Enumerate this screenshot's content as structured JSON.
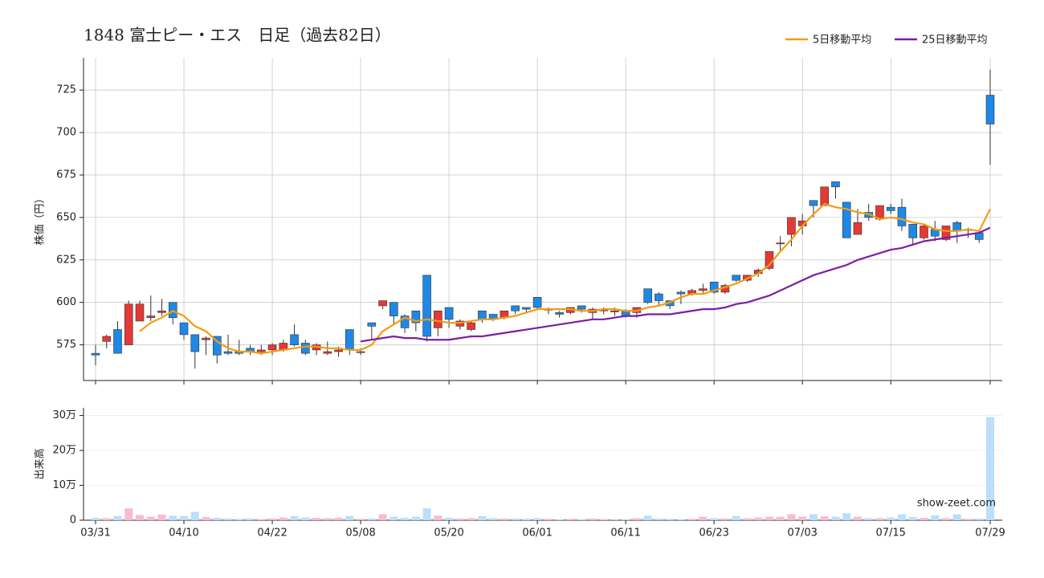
{
  "chart_data": [
    {
      "type": "candlestick",
      "title": "1848 富士ピー・エス　日足（過去82日）",
      "ylabel": "株価（円）",
      "categories": [
        "03/31",
        null,
        null,
        null,
        null,
        null,
        null,
        null,
        "04/10",
        null,
        null,
        null,
        null,
        null,
        null,
        null,
        "04/22",
        null,
        null,
        null,
        null,
        null,
        null,
        null,
        "05/08",
        null,
        null,
        null,
        null,
        null,
        null,
        null,
        "05/20",
        null,
        null,
        null,
        null,
        null,
        null,
        null,
        "06/01",
        null,
        null,
        null,
        null,
        null,
        null,
        null,
        "06/11",
        null,
        null,
        null,
        null,
        null,
        null,
        null,
        "06/23",
        null,
        null,
        null,
        null,
        null,
        null,
        null,
        "07/03",
        null,
        null,
        null,
        null,
        null,
        null,
        null,
        "07/15",
        null,
        null,
        null,
        null,
        null,
        null,
        null,
        null,
        "07/29"
      ],
      "open": [
        570,
        577,
        584,
        575,
        589,
        591,
        594,
        600,
        588,
        581,
        578,
        580,
        571,
        571,
        573,
        570,
        572,
        572,
        581,
        576,
        572,
        570,
        571,
        584,
        571,
        588,
        598,
        600,
        592,
        595,
        616,
        585,
        597,
        586,
        584,
        595,
        593,
        591,
        598,
        597,
        603,
        596,
        594,
        594,
        598,
        594,
        595,
        595,
        595,
        594,
        608,
        605,
        601,
        606,
        605,
        607,
        612,
        606,
        616,
        613,
        617,
        620,
        635,
        640,
        645,
        660,
        657,
        671,
        659,
        640,
        653,
        649,
        656,
        656,
        646,
        638,
        643,
        637,
        647,
        643,
        641,
        722
      ],
      "high": [
        575,
        581,
        589,
        601,
        601,
        604,
        602,
        600,
        588,
        581,
        580,
        580,
        581,
        578,
        575,
        575,
        576,
        578,
        587,
        578,
        576,
        577,
        574,
        584,
        573,
        588,
        601,
        600,
        593,
        595,
        616,
        595,
        597,
        590,
        589,
        595,
        593,
        595,
        598,
        597,
        603,
        597,
        595,
        597,
        598,
        597,
        597,
        597,
        596,
        597,
        608,
        606,
        601,
        607,
        608,
        611,
        612,
        611,
        616,
        616,
        620,
        630,
        639,
        650,
        652,
        660,
        668,
        671,
        659,
        655,
        658,
        657,
        658,
        661,
        646,
        646,
        648,
        645,
        648,
        644,
        642,
        737
      ],
      "low": [
        563,
        573,
        570,
        575,
        589,
        589,
        592,
        587,
        578,
        561,
        569,
        564,
        569,
        569,
        569,
        569,
        569,
        571,
        574,
        569,
        569,
        569,
        568,
        569,
        569,
        578,
        596,
        587,
        582,
        583,
        577,
        580,
        585,
        584,
        583,
        588,
        589,
        590,
        593,
        594,
        596,
        593,
        591,
        593,
        594,
        590,
        593,
        592,
        591,
        591,
        599,
        598,
        596,
        599,
        604,
        605,
        605,
        605,
        612,
        612,
        615,
        619,
        630,
        633,
        640,
        650,
        657,
        661,
        638,
        640,
        648,
        648,
        652,
        642,
        634,
        637,
        636,
        636,
        635,
        638,
        635,
        681
      ],
      "close": [
        569,
        580,
        570,
        599,
        599,
        592,
        595,
        591,
        581,
        571,
        579,
        569,
        570,
        570,
        571,
        572,
        575,
        576,
        575,
        570,
        575,
        571,
        572,
        572,
        571,
        586,
        601,
        592,
        585,
        588,
        580,
        595,
        590,
        589,
        588,
        590,
        590,
        595,
        595,
        596,
        597,
        596,
        593,
        597,
        596,
        596,
        596,
        595,
        592,
        597,
        600,
        601,
        598,
        605,
        607,
        608,
        606,
        610,
        613,
        616,
        619,
        630,
        635,
        650,
        648,
        657,
        668,
        668,
        638,
        647,
        650,
        657,
        654,
        645,
        638,
        645,
        639,
        645,
        642,
        643,
        637,
        705
      ],
      "up_color": "#e53935",
      "down_color": "#1e88e5",
      "series": [
        {
          "name": "5日移動平均",
          "color": "#f39c12",
          "values": [
            null,
            null,
            null,
            null,
            583,
            588,
            591,
            595,
            592,
            586,
            583,
            577,
            573,
            571,
            571,
            570,
            571,
            572,
            573,
            574,
            574,
            573,
            573,
            572,
            572,
            575,
            583,
            587,
            591,
            589,
            590,
            589,
            588,
            588,
            589,
            590,
            590,
            591,
            592,
            594,
            596,
            596,
            596,
            596,
            595,
            595,
            596,
            596,
            595,
            595,
            597,
            598,
            600,
            603,
            605,
            605,
            607,
            609,
            611,
            614,
            617,
            622,
            630,
            637,
            645,
            652,
            658,
            656,
            655,
            653,
            652,
            649,
            650,
            649,
            647,
            646,
            643,
            642,
            642,
            643,
            642,
            655
          ]
        },
        {
          "name": "25日移動平均",
          "color": "#7b1fa2",
          "values": [
            null,
            null,
            null,
            null,
            null,
            null,
            null,
            null,
            null,
            null,
            null,
            null,
            null,
            null,
            null,
            null,
            null,
            null,
            null,
            null,
            null,
            null,
            null,
            null,
            577,
            578,
            579,
            580,
            579,
            579,
            578,
            578,
            578,
            579,
            580,
            580,
            581,
            582,
            583,
            584,
            585,
            586,
            587,
            588,
            589,
            590,
            590,
            591,
            592,
            592,
            593,
            593,
            593,
            594,
            595,
            596,
            596,
            597,
            599,
            600,
            602,
            604,
            607,
            610,
            613,
            616,
            618,
            620,
            622,
            625,
            627,
            629,
            631,
            632,
            634,
            636,
            637,
            638,
            639,
            640,
            641,
            644
          ]
        }
      ],
      "legend": "upper right",
      "ylim": [
        554,
        744
      ],
      "yticks": [
        575,
        600,
        625,
        650,
        675,
        700,
        725
      ],
      "grid": true
    },
    {
      "type": "bar",
      "ylabel": "出来高",
      "values": [
        7000,
        6000,
        12000,
        34000,
        15000,
        10000,
        16000,
        13000,
        12000,
        24000,
        9000,
        7000,
        5000,
        4000,
        5000,
        3000,
        5000,
        8000,
        12000,
        8000,
        7000,
        6000,
        7000,
        12000,
        4000,
        5000,
        17000,
        10000,
        7000,
        10000,
        34000,
        13000,
        7000,
        5000,
        6000,
        12000,
        6000,
        5000,
        5000,
        4000,
        6000,
        4000,
        3000,
        4000,
        3000,
        5000,
        3000,
        3000,
        3000,
        6000,
        13000,
        5000,
        4000,
        3000,
        4000,
        10000,
        6000,
        5000,
        12000,
        6000,
        8000,
        10000,
        10000,
        17000,
        10000,
        17000,
        11000,
        10000,
        20000,
        10000,
        6000,
        6000,
        8000,
        17000,
        9000,
        7000,
        14000,
        6000,
        17000,
        4000,
        5000,
        295000
      ],
      "up_color": "#f8bbd0",
      "down_color": "#bbdefb",
      "ylim": [
        0,
        322000
      ],
      "yticks": [
        0,
        {
          "value": 100000,
          "label": "10万"
        },
        {
          "value": 200000,
          "label": "20万"
        },
        {
          "value": 300000,
          "label": "30万"
        }
      ],
      "grid": true,
      "annotation": "show-zeet.com"
    }
  ]
}
